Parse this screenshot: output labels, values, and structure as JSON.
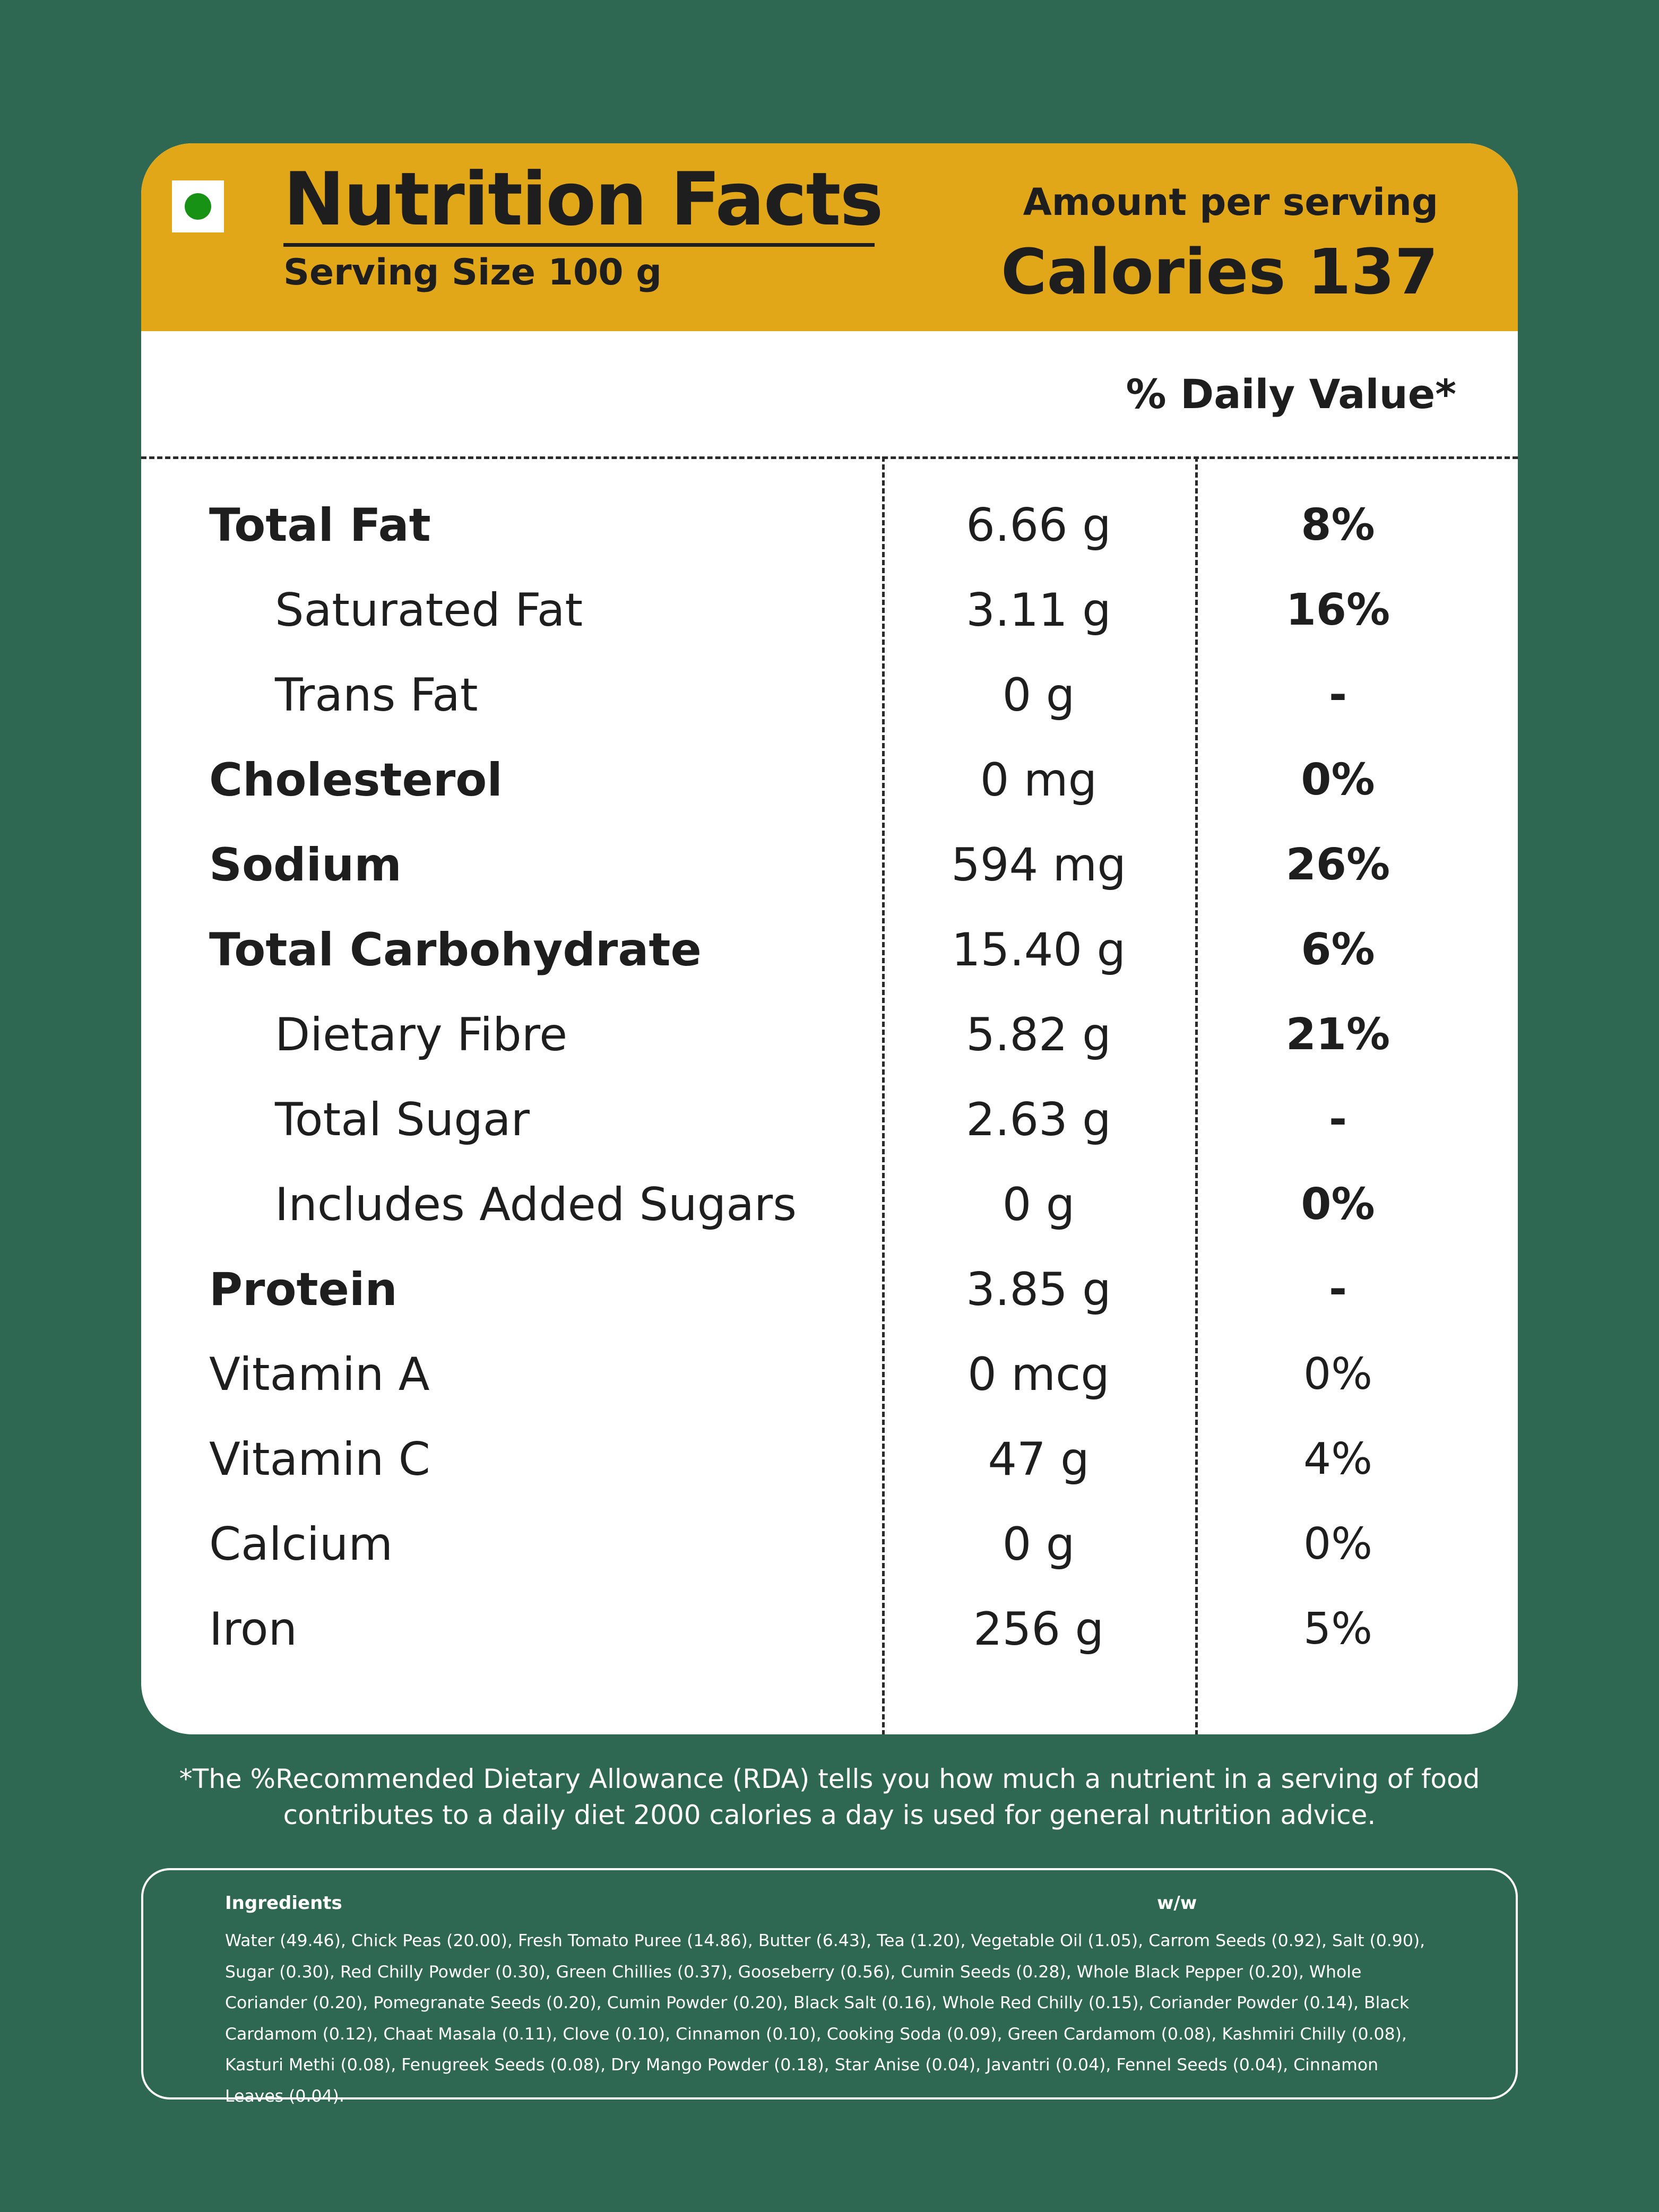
{
  "header": {
    "title": "Nutrition Facts",
    "serving_size": "Serving Size  100 g",
    "amount_per_serving": "Amount per serving",
    "calories": "Calories 137"
  },
  "daily_value_label": "% Daily Value*",
  "nutrients": [
    {
      "name": "Total Fat",
      "amount": "6.66 g",
      "dv": "8%"
    },
    {
      "name": "Saturated Fat",
      "amount": "3.11 g",
      "dv": "16%"
    },
    {
      "name": "Trans Fat",
      "amount": "0 g",
      "dv": "-"
    },
    {
      "name": "Cholesterol",
      "amount": "0 mg",
      "dv": "0%"
    },
    {
      "name": "Sodium",
      "amount": "594 mg",
      "dv": "26%"
    },
    {
      "name": "Total Carbohydrate",
      "amount": "15.40 g",
      "dv": "6%"
    },
    {
      "name": "Dietary Fibre",
      "amount": "5.82 g",
      "dv": "21%"
    },
    {
      "name": "Total Sugar",
      "amount": "2.63 g",
      "dv": "-"
    },
    {
      "name": "Includes Added Sugars",
      "amount": "0 g",
      "dv": "0%"
    },
    {
      "name": "Protein",
      "amount": "3.85 g",
      "dv": "-"
    },
    {
      "name": "Vitamin A",
      "amount": "0 mcg",
      "dv": "0%"
    },
    {
      "name": "Vitamin C",
      "amount": "47 g",
      "dv": "4%"
    },
    {
      "name": "Calcium",
      "amount": "0 g",
      "dv": "0%"
    },
    {
      "name": "Iron",
      "amount": "256 g",
      "dv": "5%"
    }
  ],
  "footnote": {
    "line1": "*The %Recommended Dietary Allowance (RDA) tells you how much a nutrient in a serving of food",
    "line2": "contributes to a daily diet 2000 calories a day is used for general nutrition advice."
  },
  "ingredients": {
    "title": "Ingredients",
    "unit": "w/w",
    "text": "Water (49.46), Chick Peas (20.00), Fresh Tomato Puree (14.86), Butter (6.43), Tea (1.20), Vegetable Oil (1.05), Carrom Seeds (0.92), Salt (0.90), Sugar (0.30), Red Chilly Powder (0.30), Green Chillies (0.37), Gooseberry (0.56), Cumin Seeds (0.28), Whole Black Pepper (0.20), Whole Coriander (0.20), Pomegranate Seeds (0.20), Cumin Powder (0.20), Black Salt (0.16), Whole Red Chilly (0.15), Coriander Powder (0.14), Black Cardamom (0.12), Chaat Masala (0.11), Clove (0.10), Cinnamon (0.10), Cooking Soda (0.09), Green Cardamom (0.08), Kashmiri Chilly (0.08), Kasturi Methi (0.08), Fenugreek Seeds (0.08), Dry Mango Powder (0.18), Star Anise (0.04), Javantri (0.04), Fennel Seeds (0.04), Cinnamon Leaves (0.04)."
  },
  "colors": {
    "background": "#2e6853",
    "header": "#e2a719",
    "veg_dot": "#179214"
  },
  "icons": [
    "veg-mark-icon"
  ]
}
